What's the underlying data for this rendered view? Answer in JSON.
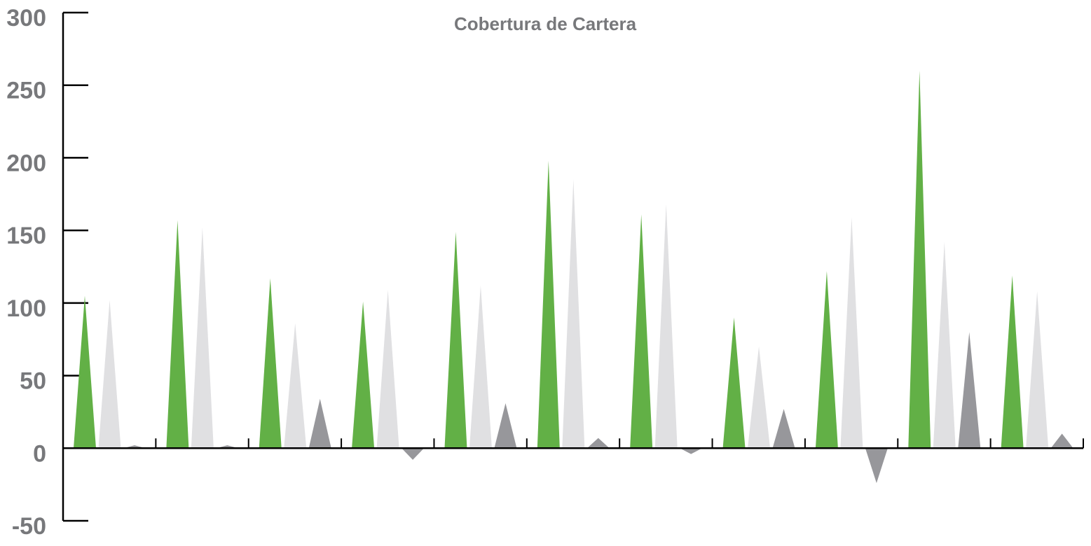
{
  "chart_data": {
    "type": "bar",
    "title": "Cobertura de Cartera",
    "categories": [
      null,
      null,
      null,
      null,
      null,
      null,
      null,
      null,
      null,
      null,
      null
    ],
    "series": [
      {
        "color": "#62b046",
        "values": [
          105,
          157,
          117,
          101,
          149,
          198,
          161,
          90,
          122,
          260,
          119
        ]
      },
      {
        "color": "#e0e0e2",
        "values": [
          102,
          152,
          86,
          109,
          112,
          185,
          168,
          70,
          159,
          142,
          108
        ]
      },
      {
        "color": "#97979b",
        "values": [
          2,
          2,
          34,
          -8,
          31,
          7,
          -4,
          27,
          -24,
          80,
          10
        ]
      }
    ],
    "ylim": [
      -50,
      300
    ],
    "yticks": [
      -50,
      0,
      50,
      100,
      150,
      200,
      250,
      300
    ]
  }
}
